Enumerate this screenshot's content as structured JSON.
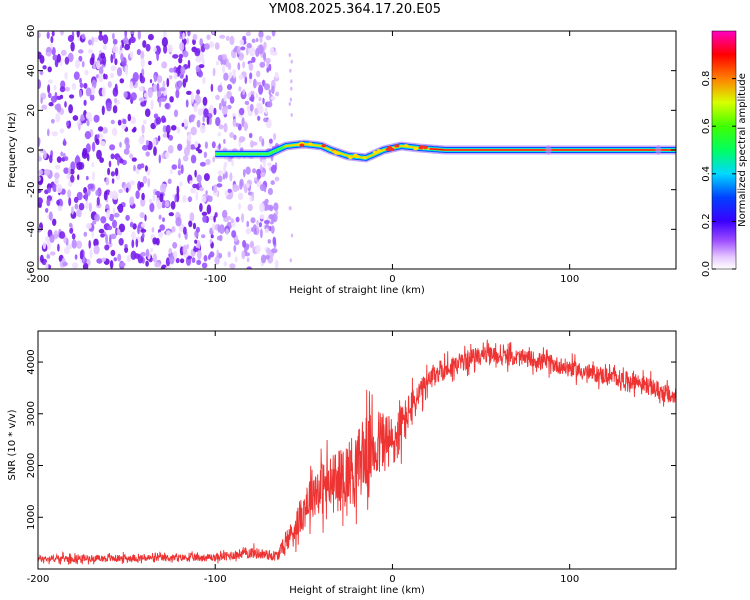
{
  "title": "YM08.2025.364.17.20.E05",
  "chart_data": [
    {
      "type": "heatmap",
      "title": "YM08.2025.364.17.20.E05",
      "xlabel": "Height of straight line (km)",
      "ylabel": "Frequency (Hz)",
      "xlim": [
        -200,
        160
      ],
      "ylim": [
        -60,
        60
      ],
      "x_ticks": [
        "-200",
        "-100",
        "0",
        "100"
      ],
      "y_ticks": [
        "60",
        "40",
        "20",
        "0",
        "-20",
        "-40",
        "-60"
      ],
      "noise_region_x": [
        -200,
        -65
      ],
      "signal_track": [
        {
          "x": -100,
          "f": -2
        },
        {
          "x": -85,
          "f": -2
        },
        {
          "x": -70,
          "f": -2
        },
        {
          "x": -60,
          "f": 2
        },
        {
          "x": -50,
          "f": 3
        },
        {
          "x": -40,
          "f": 2
        },
        {
          "x": -35,
          "f": 0
        },
        {
          "x": -25,
          "f": -3
        },
        {
          "x": -15,
          "f": -4
        },
        {
          "x": -5,
          "f": 0
        },
        {
          "x": 5,
          "f": 2
        },
        {
          "x": 15,
          "f": 1
        },
        {
          "x": 30,
          "f": 0
        },
        {
          "x": 160,
          "f": 0
        }
      ],
      "colorbar": {
        "label": "Normalized spectral amplitude",
        "range": [
          0.0,
          1.0
        ],
        "ticks": [
          "0.0",
          "0.2",
          "0.4",
          "0.6",
          "0.8"
        ]
      }
    },
    {
      "type": "line",
      "xlabel": "Height of straight line (km)",
      "ylabel": "SNR (10 * v/v)",
      "xlim": [
        -200,
        160
      ],
      "ylim": [
        0,
        4600
      ],
      "x_ticks": [
        "-200",
        "-100",
        "0",
        "100"
      ],
      "y_ticks": [
        "1000",
        "2000",
        "3000",
        "4000"
      ],
      "series": [
        {
          "name": "SNR",
          "color": "#ee3333",
          "envelope": [
            {
              "x": -200,
              "mean": 200,
              "spread": 120
            },
            {
              "x": -150,
              "mean": 210,
              "spread": 120
            },
            {
              "x": -100,
              "mean": 220,
              "spread": 130
            },
            {
              "x": -80,
              "mean": 320,
              "spread": 200
            },
            {
              "x": -65,
              "mean": 250,
              "spread": 180
            },
            {
              "x": -55,
              "mean": 800,
              "spread": 500
            },
            {
              "x": -45,
              "mean": 1500,
              "spread": 900
            },
            {
              "x": -30,
              "mean": 1700,
              "spread": 1100
            },
            {
              "x": -15,
              "mean": 2200,
              "spread": 1300
            },
            {
              "x": -5,
              "mean": 2500,
              "spread": 1200
            },
            {
              "x": 0,
              "mean": 2400,
              "spread": 1000
            },
            {
              "x": 10,
              "mean": 3100,
              "spread": 600
            },
            {
              "x": 25,
              "mean": 3800,
              "spread": 400
            },
            {
              "x": 50,
              "mean": 4150,
              "spread": 300
            },
            {
              "x": 80,
              "mean": 4050,
              "spread": 300
            },
            {
              "x": 110,
              "mean": 3800,
              "spread": 300
            },
            {
              "x": 140,
              "mean": 3600,
              "spread": 300
            },
            {
              "x": 160,
              "mean": 3300,
              "spread": 350
            }
          ]
        }
      ]
    }
  ]
}
